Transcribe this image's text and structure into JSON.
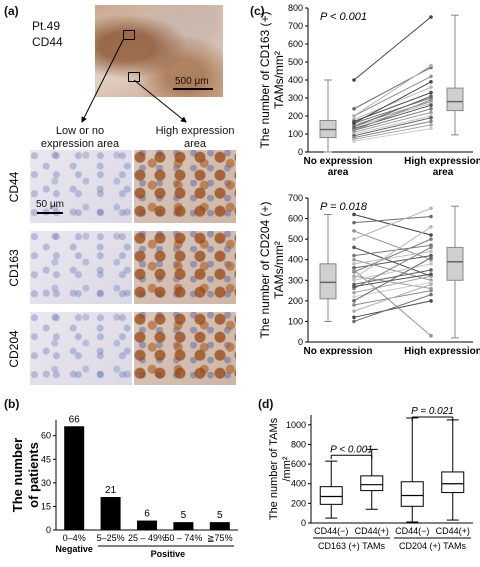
{
  "panel_a": {
    "letter": "(a)",
    "patient": "Pt.49",
    "marker": "CD44",
    "scale_overview": "500 μm",
    "col_low": "Low or no expression area",
    "col_high": "High expression area",
    "rows": [
      "CD44",
      "CD163",
      "CD204"
    ],
    "scale_micro": "50 μm"
  },
  "panel_b": {
    "letter": "(b)",
    "chart_data": {
      "type": "bar",
      "categories": [
        "0–4%",
        "5–25%",
        "25 – 49%",
        "50 – 74%",
        "≧75%"
      ],
      "values": [
        66,
        21,
        6,
        5,
        5
      ],
      "ylabel": "The number of patients",
      "ylim": [
        0,
        70
      ],
      "yticks": [
        0,
        15,
        30,
        45,
        60
      ],
      "group_labels": [
        "Negative",
        "Positive"
      ]
    }
  },
  "panel_c": {
    "letter": "(c)",
    "charts": [
      {
        "type": "boxplot-paired",
        "pvalue": "P < 0.001",
        "ylabel": "The number of CD163 (+) TAMs/mm²",
        "ylim": [
          0,
          800
        ],
        "yticks": [
          0,
          100,
          200,
          300,
          400,
          500,
          600,
          700,
          800
        ],
        "categories": [
          "No expression area",
          "High expression area"
        ],
        "boxes": [
          {
            "min": 0,
            "q1": 80,
            "median": 125,
            "q3": 175,
            "max": 400
          },
          {
            "min": 95,
            "q1": 230,
            "median": 280,
            "q3": 355,
            "max": 760
          }
        ],
        "pairs": [
          [
            400,
            750
          ],
          [
            240,
            470
          ],
          [
            200,
            420
          ],
          [
            180,
            360
          ],
          [
            170,
            330
          ],
          [
            160,
            300
          ],
          [
            150,
            280
          ],
          [
            140,
            270
          ],
          [
            130,
            260
          ],
          [
            120,
            240
          ],
          [
            110,
            220
          ],
          [
            100,
            200
          ],
          [
            90,
            190
          ],
          [
            80,
            170
          ],
          [
            70,
            150
          ],
          [
            60,
            130
          ],
          [
            140,
            310
          ],
          [
            120,
            290
          ],
          [
            200,
            480
          ],
          [
            160,
            390
          ]
        ]
      },
      {
        "type": "boxplot-paired",
        "pvalue": "P = 0.018",
        "ylabel": "The number of CD204 (+) TAMs/mm²",
        "ylim": [
          0,
          700
        ],
        "yticks": [
          0,
          100,
          200,
          300,
          400,
          500,
          600,
          700
        ],
        "categories": [
          "No expression area",
          "High expression area"
        ],
        "boxes": [
          {
            "min": 100,
            "q1": 210,
            "median": 290,
            "q3": 380,
            "max": 620
          },
          {
            "min": 20,
            "q1": 300,
            "median": 390,
            "q3": 460,
            "max": 660
          }
        ],
        "pairs": [
          [
            620,
            520
          ],
          [
            580,
            610
          ],
          [
            540,
            400
          ],
          [
            500,
            650
          ],
          [
            460,
            320
          ],
          [
            420,
            470
          ],
          [
            400,
            300
          ],
          [
            380,
            440
          ],
          [
            360,
            420
          ],
          [
            340,
            500
          ],
          [
            320,
            260
          ],
          [
            300,
            380
          ],
          [
            280,
            350
          ],
          [
            260,
            460
          ],
          [
            240,
            320
          ],
          [
            220,
            290
          ],
          [
            200,
            410
          ],
          [
            180,
            250
          ],
          [
            150,
            280
          ],
          [
            120,
            200
          ],
          [
            100,
            230
          ],
          [
            350,
            30
          ],
          [
            310,
            560
          ],
          [
            270,
            330
          ]
        ]
      }
    ]
  },
  "panel_d": {
    "letter": "(d)",
    "chart_data": {
      "type": "boxplot",
      "ylabel": "The number of TAMs /mm²",
      "ylim": [
        0,
        1100
      ],
      "yticks": [
        0,
        200,
        400,
        600,
        800,
        1000
      ],
      "categories": [
        "CD44(−)",
        "CD44(+)",
        "CD44(−)",
        "CD44(+)"
      ],
      "groups": [
        "CD163 (+) TAMs",
        "CD204 (+) TAMs"
      ],
      "pvalues": [
        "P < 0.001",
        "P = 0.021"
      ],
      "boxes": [
        {
          "min": 50,
          "q1": 190,
          "median": 270,
          "q3": 370,
          "max": 630
        },
        {
          "min": 140,
          "q1": 330,
          "median": 390,
          "q3": 480,
          "max": 750
        },
        {
          "min": 10,
          "q1": 170,
          "median": 280,
          "q3": 420,
          "max": 1070
        },
        {
          "min": 30,
          "q1": 310,
          "median": 400,
          "q3": 520,
          "max": 1050
        }
      ]
    }
  }
}
